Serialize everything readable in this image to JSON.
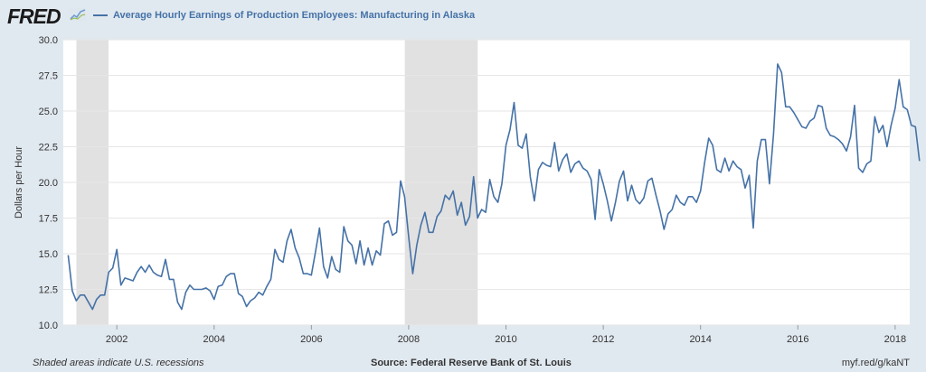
{
  "header": {
    "logo_text": "FRED",
    "logo_icon": "trend-line-icon",
    "series_title": "Average Hourly Earnings of Production Employees: Manufacturing in Alaska"
  },
  "footer": {
    "recession_note": "Shaded areas indicate U.S. recessions",
    "source": "Source: Federal Reserve Bank of St. Louis",
    "short_url": "myf.red/g/kaNT"
  },
  "colors": {
    "background": "#e1e9f0",
    "plot_area": "#ffffff",
    "series": "#4572a7",
    "recession_shade": "#e1e1e1"
  },
  "chart_data": {
    "type": "line",
    "ylabel": "Dollars per Hour",
    "ylim": [
      10.0,
      30.0
    ],
    "xlim": [
      2000.9,
      2018.3
    ],
    "grid": true,
    "legend_position": "top-left",
    "x_ticks": [
      "2002",
      "2004",
      "2006",
      "2008",
      "2010",
      "2012",
      "2014",
      "2016",
      "2018"
    ],
    "y_ticks": [
      "10.0",
      "12.5",
      "15.0",
      "17.5",
      "20.0",
      "22.5",
      "25.0",
      "27.5",
      "30.0"
    ],
    "recessions": [
      [
        2001.17,
        2001.83
      ],
      [
        2007.92,
        2009.42
      ]
    ],
    "series": [
      {
        "name": "Average Hourly Earnings of Production Employees: Manufacturing in Alaska",
        "x_start": 2001.0,
        "step": 0.0833333,
        "values": [
          14.9,
          12.4,
          11.7,
          12.1,
          12.1,
          11.6,
          11.1,
          11.8,
          12.1,
          12.1,
          13.7,
          14.0,
          15.3,
          12.8,
          13.3,
          13.2,
          13.1,
          13.7,
          14.1,
          13.7,
          14.2,
          13.7,
          13.5,
          13.4,
          14.6,
          13.2,
          13.2,
          11.6,
          11.1,
          12.3,
          12.8,
          12.5,
          12.5,
          12.5,
          12.6,
          12.4,
          11.8,
          12.7,
          12.8,
          13.4,
          13.6,
          13.6,
          12.2,
          12.0,
          11.3,
          11.7,
          11.9,
          12.3,
          12.1,
          12.7,
          13.2,
          15.3,
          14.6,
          14.4,
          15.9,
          16.7,
          15.4,
          14.7,
          13.6,
          13.6,
          13.5,
          15.1,
          16.8,
          14.1,
          13.3,
          14.8,
          13.9,
          13.7,
          16.9,
          15.9,
          15.6,
          14.3,
          15.9,
          14.2,
          15.4,
          14.2,
          15.2,
          14.9,
          17.1,
          17.3,
          16.3,
          16.5,
          20.1,
          19.0,
          16.2,
          13.6,
          15.6,
          17.0,
          17.9,
          16.5,
          16.5,
          17.6,
          18.0,
          19.1,
          18.8,
          19.4,
          17.7,
          18.6,
          17.0,
          17.6,
          20.4,
          17.5,
          18.1,
          17.9,
          20.2,
          19.0,
          18.6,
          19.9,
          22.6,
          23.7,
          25.6,
          22.6,
          22.4,
          23.4,
          20.4,
          18.7,
          20.9,
          21.4,
          21.2,
          21.1,
          22.8,
          20.8,
          21.6,
          22.0,
          20.7,
          21.3,
          21.5,
          21.0,
          20.8,
          20.2,
          17.4,
          20.9,
          19.9,
          18.7,
          17.3,
          18.6,
          20.1,
          20.8,
          18.7,
          19.8,
          18.8,
          18.5,
          18.9,
          20.1,
          20.3,
          19.1,
          18.0,
          16.7,
          17.8,
          18.1,
          19.1,
          18.6,
          18.4,
          19.0,
          19.0,
          18.6,
          19.4,
          21.4,
          23.1,
          22.6,
          20.9,
          20.7,
          21.7,
          20.8,
          21.5,
          21.1,
          20.9,
          19.6,
          20.5,
          16.8,
          21.5,
          23.0,
          23.0,
          19.9,
          23.4,
          28.3,
          27.7,
          25.3,
          25.3,
          24.9,
          24.4,
          23.9,
          23.8,
          24.3,
          24.5,
          25.4,
          25.3,
          23.8,
          23.3,
          23.2,
          23.0,
          22.7,
          22.2,
          23.2,
          25.4,
          21.0,
          20.7,
          21.3,
          21.5,
          24.6,
          23.5,
          24.0,
          22.5,
          24.0,
          25.2,
          27.2,
          25.3,
          25.1,
          24.0,
          23.9,
          21.5
        ]
      }
    ]
  }
}
